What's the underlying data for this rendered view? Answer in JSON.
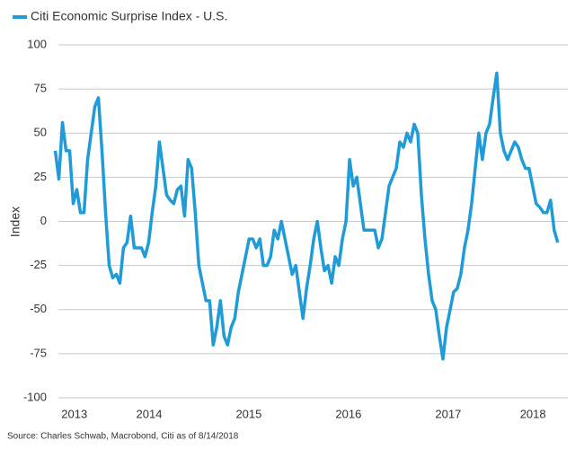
{
  "chart_data": {
    "type": "line",
    "series": [
      {
        "name": "Citi Economic Surprise Index - U.S.",
        "color": "#1f9bd7",
        "x": [
          2013.559,
          2013.595,
          2013.631,
          2013.667,
          2013.703,
          2013.739,
          2013.775,
          2013.811,
          2013.847,
          2013.883,
          2013.919,
          2013.955,
          2013.991,
          2014.027,
          2014.063,
          2014.099,
          2014.135,
          2014.171,
          2014.207,
          2014.243,
          2014.279,
          2014.315,
          2014.351,
          2014.387,
          2014.423,
          2014.459,
          2014.495,
          2014.531,
          2014.567,
          2014.603,
          2014.639,
          2014.675,
          2014.711,
          2014.747,
          2014.783,
          2014.819,
          2014.855,
          2014.891,
          2014.927,
          2014.963,
          2014.999,
          2015.035,
          2015.071,
          2015.107,
          2015.143,
          2015.179,
          2015.215,
          2015.251,
          2015.287,
          2015.323,
          2015.359,
          2015.395,
          2015.431,
          2015.467,
          2015.503,
          2015.539,
          2015.575,
          2015.611,
          2015.647,
          2015.683,
          2015.719,
          2015.755,
          2015.791,
          2015.827,
          2015.863,
          2015.899,
          2015.935,
          2015.971,
          2016.007,
          2016.043,
          2016.079,
          2016.115,
          2016.151,
          2016.187,
          2016.223,
          2016.259,
          2016.295,
          2016.331,
          2016.367,
          2016.403,
          2016.439,
          2016.475,
          2016.511,
          2016.547,
          2016.583,
          2016.619,
          2016.655,
          2016.691,
          2016.727,
          2016.763,
          2016.799,
          2016.835,
          2016.871,
          2016.907,
          2016.943,
          2016.979,
          2017.015,
          2017.051,
          2017.087,
          2017.123,
          2017.159,
          2017.195,
          2017.231,
          2017.267,
          2017.303,
          2017.339,
          2017.375,
          2017.411,
          2017.447,
          2017.483,
          2017.519,
          2017.555,
          2017.591,
          2017.627,
          2017.663,
          2017.699,
          2017.735,
          2017.771,
          2017.807,
          2017.843,
          2017.879,
          2017.915,
          2017.951,
          2017.987,
          2018.023,
          2018.059,
          2018.095,
          2018.131,
          2018.167,
          2018.203,
          2018.239,
          2018.275,
          2018.311,
          2018.347,
          2018.383,
          2018.419,
          2018.455,
          2018.491,
          2018.527,
          2018.563,
          2018.599
        ],
        "values": [
          40,
          24,
          56,
          40,
          40,
          10,
          18,
          5,
          5,
          35,
          50,
          65,
          70,
          40,
          5,
          -25,
          -32,
          -30,
          -35,
          -15,
          -12,
          3,
          -15,
          -15,
          -15,
          -20,
          -12,
          5,
          20,
          45,
          30,
          15,
          12,
          10,
          18,
          20,
          3,
          35,
          30,
          5,
          -25,
          -35,
          -45,
          -45,
          -70,
          -60,
          -45,
          -65,
          -70,
          -60,
          -55,
          -40,
          -30,
          -20,
          -10,
          -10,
          -15,
          -10,
          -25,
          -25,
          -20,
          -5,
          -10,
          0,
          -10,
          -20,
          -30,
          -25,
          -40,
          -55,
          -38,
          -25,
          -10,
          0,
          -15,
          -28,
          -25,
          -35,
          -20,
          -25,
          -10,
          0,
          35,
          20,
          25,
          10,
          -5,
          -5,
          -5,
          -5,
          -15,
          -10,
          5,
          20,
          25,
          30,
          45,
          42,
          50,
          45,
          55,
          50,
          15,
          -10,
          -30,
          -45,
          -50,
          -65,
          -78,
          -60,
          -50,
          -40,
          -38,
          -30,
          -15,
          -5,
          10,
          30,
          50,
          35,
          50,
          55,
          70,
          84,
          50,
          40,
          35,
          40,
          45,
          42,
          35,
          30,
          30,
          20,
          10,
          8,
          5,
          5,
          12,
          -5,
          -12
        ]
      }
    ],
    "y_label": "Index",
    "source": "Source: Charles Schwab, Macrobond, Citi as of 8/14/2018",
    "xlim": [
      2013.5,
      2018.7
    ],
    "xticks": [
      {
        "value": 2013.75,
        "label": "2013"
      },
      {
        "value": 2014.5,
        "label": "2014"
      },
      {
        "value": 2015.5,
        "label": "2015"
      },
      {
        "value": 2016.5,
        "label": "2016"
      },
      {
        "value": 2017.5,
        "label": "2017"
      },
      {
        "value": 2018.35,
        "label": "2018"
      }
    ],
    "ylim": [
      -100,
      100
    ],
    "yticks": [
      -100,
      -75,
      -50,
      -25,
      0,
      25,
      50,
      75,
      100
    ],
    "grid": true
  }
}
